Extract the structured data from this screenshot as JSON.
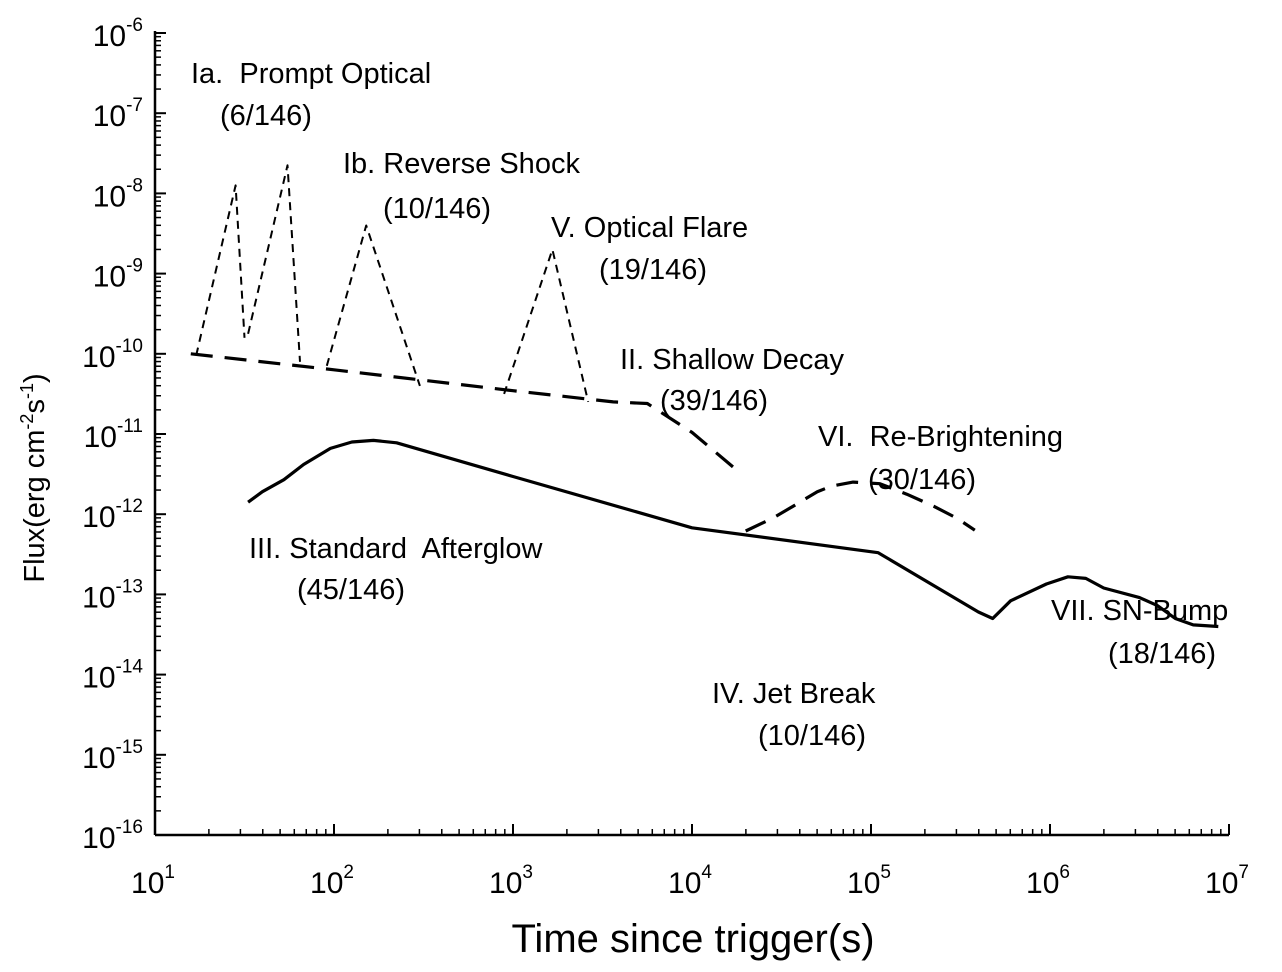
{
  "chart_data": {
    "type": "line",
    "title": "",
    "xlabel": "Time since trigger(s)",
    "ylabel": {
      "prefix": "Flux(erg cm",
      "exp1": "-2",
      "mid": "s",
      "exp2": "-1",
      "suffix": ")"
    },
    "xscale": "log",
    "yscale": "log",
    "xlim_log10": [
      1,
      7
    ],
    "ylim_log10": [
      -16,
      -6
    ],
    "x_ticks": [
      {
        "base": "10",
        "exp": "1",
        "log": 1
      },
      {
        "base": "10",
        "exp": "2",
        "log": 2
      },
      {
        "base": "10",
        "exp": "3",
        "log": 3
      },
      {
        "base": "10",
        "exp": "4",
        "log": 4
      },
      {
        "base": "10",
        "exp": "5",
        "log": 5
      },
      {
        "base": "10",
        "exp": "6",
        "log": 6
      },
      {
        "base": "10",
        "exp": "7",
        "log": 7
      }
    ],
    "y_ticks": [
      {
        "base": "10",
        "exp": "-16",
        "log": -16
      },
      {
        "base": "10",
        "exp": "-15",
        "log": -15
      },
      {
        "base": "10",
        "exp": "-14",
        "log": -14
      },
      {
        "base": "10",
        "exp": "-13",
        "log": -13
      },
      {
        "base": "10",
        "exp": "-12",
        "log": -12
      },
      {
        "base": "10",
        "exp": "-11",
        "log": -11
      },
      {
        "base": "10",
        "exp": "-10",
        "log": -10
      },
      {
        "base": "10",
        "exp": "-9",
        "log": -9
      },
      {
        "base": "10",
        "exp": "-8",
        "log": -8
      },
      {
        "base": "10",
        "exp": "-7",
        "log": -7
      },
      {
        "base": "10",
        "exp": "-6",
        "log": -6
      }
    ],
    "series": [
      {
        "name": "III. Standard Afterglow + IV. Jet Break + VII. SN-Bump",
        "style": "solid",
        "log_points": [
          [
            1.52,
            -11.85
          ],
          [
            1.6,
            -11.72
          ],
          [
            1.72,
            -11.57
          ],
          [
            1.83,
            -11.38
          ],
          [
            1.98,
            -11.18
          ],
          [
            2.1,
            -11.1
          ],
          [
            2.22,
            -11.08
          ],
          [
            2.35,
            -11.11
          ],
          [
            3.0,
            -11.53
          ],
          [
            4.0,
            -12.17
          ],
          [
            5.04,
            -12.48
          ],
          [
            5.6,
            -13.22
          ],
          [
            5.68,
            -13.3
          ],
          [
            5.78,
            -13.08
          ],
          [
            5.98,
            -12.87
          ],
          [
            6.1,
            -12.78
          ],
          [
            6.2,
            -12.8
          ],
          [
            6.3,
            -12.92
          ],
          [
            6.5,
            -13.04
          ],
          [
            6.6,
            -13.14
          ],
          [
            6.7,
            -13.3
          ],
          [
            6.8,
            -13.38
          ],
          [
            6.94,
            -13.4
          ]
        ]
      },
      {
        "name": "II. Shallow Decay",
        "style": "long-dash",
        "log_points": [
          [
            1.2,
            -10.0
          ],
          [
            2.0,
            -10.2
          ],
          [
            3.0,
            -10.46
          ],
          [
            3.56,
            -10.6
          ],
          [
            3.75,
            -10.62
          ],
          [
            4.0,
            -10.98
          ],
          [
            4.25,
            -11.45
          ]
        ]
      },
      {
        "name": "VI. Re-Brightening",
        "style": "long-dash",
        "log_points": [
          [
            4.3,
            -12.21
          ],
          [
            4.45,
            -12.05
          ],
          [
            4.55,
            -11.92
          ],
          [
            4.7,
            -11.72
          ],
          [
            4.78,
            -11.65
          ],
          [
            4.9,
            -11.6
          ],
          [
            5.05,
            -11.62
          ],
          [
            5.2,
            -11.75
          ],
          [
            5.35,
            -11.9
          ],
          [
            5.48,
            -12.05
          ],
          [
            5.58,
            -12.2
          ]
        ]
      },
      {
        "name": "Ia. Prompt Optical (pulse 1)",
        "style": "short-dash",
        "log_points": [
          [
            1.23,
            -10.02
          ],
          [
            1.45,
            -7.9
          ],
          [
            1.5,
            -9.8
          ]
        ]
      },
      {
        "name": "Ia. Prompt Optical (pulse 2)",
        "style": "short-dash",
        "log_points": [
          [
            1.52,
            -9.75
          ],
          [
            1.74,
            -7.65
          ],
          [
            1.81,
            -10.1
          ]
        ]
      },
      {
        "name": "Ib. Reverse Shock",
        "style": "short-dash",
        "log_points": [
          [
            1.96,
            -10.15
          ],
          [
            2.18,
            -8.4
          ],
          [
            2.48,
            -10.4
          ]
        ]
      },
      {
        "name": "V. Optical Flare",
        "style": "short-dash",
        "log_points": [
          [
            2.95,
            -10.5
          ],
          [
            3.22,
            -8.7
          ],
          [
            3.42,
            -10.6
          ]
        ]
      }
    ],
    "annotations": [
      {
        "key": "prompt_title",
        "text": "Ia.  Prompt Optical"
      },
      {
        "key": "prompt_count",
        "text": "(6/146)"
      },
      {
        "key": "reverse_title",
        "text": "Ib. Reverse Shock"
      },
      {
        "key": "reverse_count",
        "text": "(10/146)"
      },
      {
        "key": "flare_title",
        "text": "V. Optical Flare"
      },
      {
        "key": "flare_count",
        "text": "(19/146)"
      },
      {
        "key": "shallow_title",
        "text": "II. Shallow Decay"
      },
      {
        "key": "shallow_count",
        "text": "(39/146)"
      },
      {
        "key": "rebright_title",
        "text": "VI.  Re-Brightening"
      },
      {
        "key": "rebright_count",
        "text": "(30/146)"
      },
      {
        "key": "standard_title",
        "text": "III. Standard  Afterglow"
      },
      {
        "key": "standard_count",
        "text": "(45/146)"
      },
      {
        "key": "jet_title",
        "text": "IV. Jet Break"
      },
      {
        "key": "jet_count",
        "text": "(10/146)"
      },
      {
        "key": "sn_title",
        "text": "VII. SN-Bump"
      },
      {
        "key": "sn_count",
        "text": "(18/146)"
      }
    ]
  }
}
